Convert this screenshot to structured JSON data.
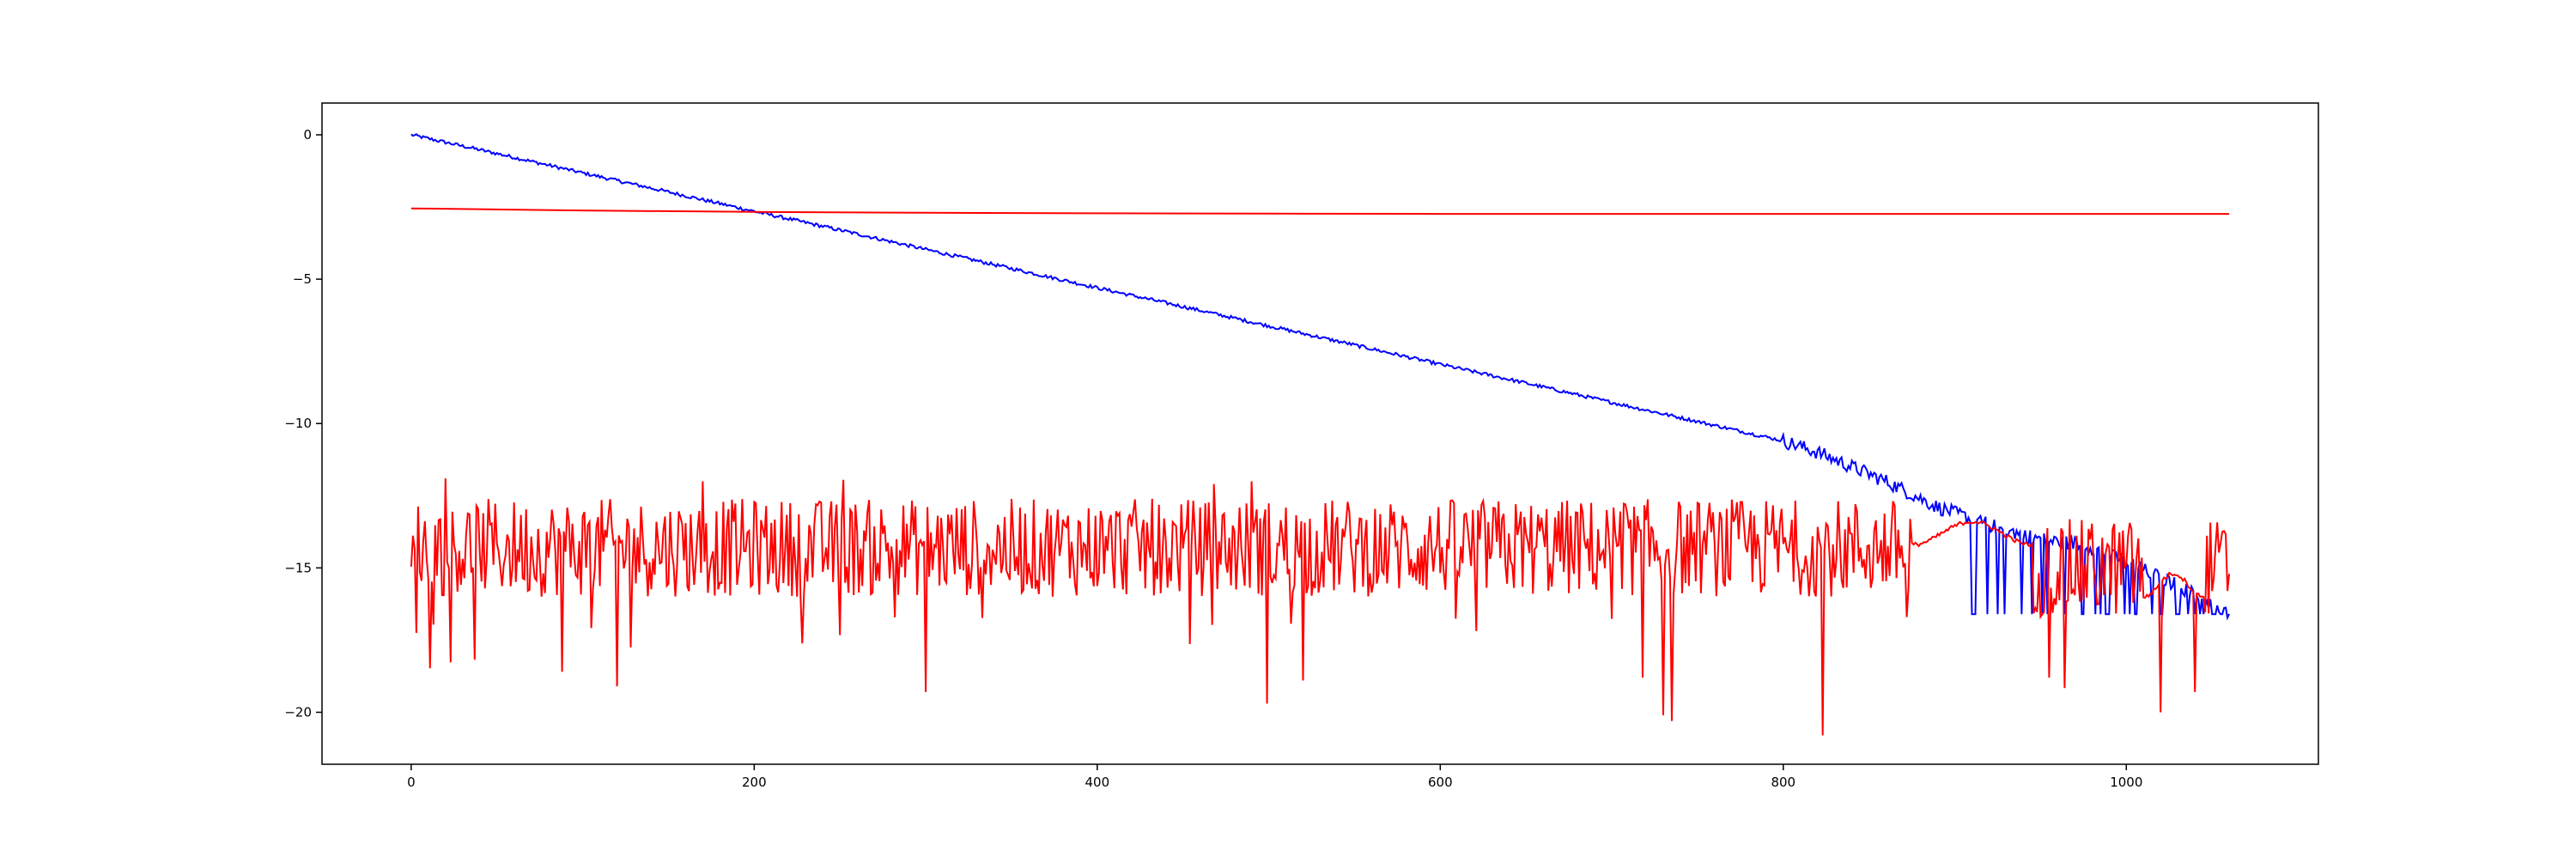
{
  "chart_data": {
    "type": "line",
    "title": "",
    "xlabel": "",
    "ylabel": "",
    "xlim": [
      -52,
      1112
    ],
    "ylim": [
      -21.8,
      1.1
    ],
    "xticks": [
      0,
      200,
      400,
      600,
      800,
      1000
    ],
    "yticks": [
      0,
      -5,
      -10,
      -15,
      -20
    ],
    "xtick_labels": [
      "0",
      "200",
      "400",
      "600",
      "800",
      "1000"
    ],
    "ytick_labels": [
      "0",
      "−5",
      "−10",
      "−15",
      "−20"
    ],
    "grid": false,
    "legend": null,
    "series": [
      {
        "color": "#0000ff",
        "points": [
          [
            0,
            0.0
          ],
          [
            50,
            -0.65
          ],
          [
            100,
            -1.32
          ],
          [
            150,
            -1.98
          ],
          [
            200,
            -2.65
          ],
          [
            250,
            -3.3
          ],
          [
            300,
            -3.97
          ],
          [
            350,
            -4.63
          ],
          [
            400,
            -5.3
          ],
          [
            450,
            -5.95
          ],
          [
            500,
            -6.62
          ],
          [
            550,
            -7.28
          ],
          [
            600,
            -7.95
          ],
          [
            650,
            -8.6
          ],
          [
            700,
            -9.27
          ],
          [
            750,
            -9.93
          ],
          [
            800,
            -10.6
          ],
          [
            820,
            -11.0
          ],
          [
            840,
            -11.5
          ],
          [
            860,
            -12.0
          ],
          [
            870,
            -12.3
          ],
          [
            880,
            -12.6
          ],
          [
            890,
            -12.9
          ],
          [
            900,
            -13.1
          ],
          [
            910,
            -13.3
          ],
          [
            920,
            -13.5
          ],
          [
            930,
            -13.7
          ],
          [
            940,
            -13.85
          ],
          [
            950,
            -14.0
          ],
          [
            960,
            -14.1
          ],
          [
            970,
            -14.15
          ],
          [
            980,
            -14.3
          ],
          [
            990,
            -14.55
          ],
          [
            1000,
            -14.8
          ],
          [
            1015,
            -15.2
          ],
          [
            1030,
            -15.6
          ],
          [
            1045,
            -16.1
          ],
          [
            1060,
            -16.6
          ]
        ],
        "noise_from_x": 800,
        "noise_amplitude": 0.25,
        "dropouts_to": -16.6,
        "dropouts_between": [
          910,
          1060
        ],
        "dashed_from_x": 968
      },
      {
        "color": "#ff0000",
        "points": [
          [
            0,
            -2.55
          ],
          [
            100,
            -2.62
          ],
          [
            200,
            -2.67
          ],
          [
            300,
            -2.7
          ],
          [
            400,
            -2.72
          ],
          [
            500,
            -2.73
          ],
          [
            600,
            -2.74
          ],
          [
            700,
            -2.74
          ],
          [
            800,
            -2.74
          ],
          [
            900,
            -2.74
          ],
          [
            1000,
            -2.74
          ],
          [
            1060,
            -2.74
          ]
        ]
      },
      {
        "color": "#ff0000",
        "noisy": true,
        "mean": -14.3,
        "x_range": [
          0,
          1060
        ],
        "min": -20.8,
        "max": -11.9,
        "spikes": [
          [
            88,
            -18.6
          ],
          [
            120,
            -19.1
          ],
          [
            300,
            -19.3
          ],
          [
            499,
            -19.7
          ],
          [
            520,
            -18.9
          ],
          [
            718,
            -18.8
          ],
          [
            730,
            -20.1
          ],
          [
            735,
            -20.3
          ],
          [
            823,
            -20.8
          ],
          [
            955,
            -18.8
          ],
          [
            1020,
            -20.0
          ],
          [
            1040,
            -19.3
          ]
        ],
        "peaks": [
          [
            20,
            -11.9
          ],
          [
            170,
            -12.0
          ],
          [
            252,
            -11.95
          ],
          [
            468,
            -12.1
          ],
          [
            490,
            -12.0
          ],
          [
            708,
            -12.8
          ]
        ],
        "smooth_bumps": [
          [
            875,
            945,
            -13.4
          ],
          [
            1010,
            1045,
            -15.2
          ]
        ]
      }
    ]
  }
}
